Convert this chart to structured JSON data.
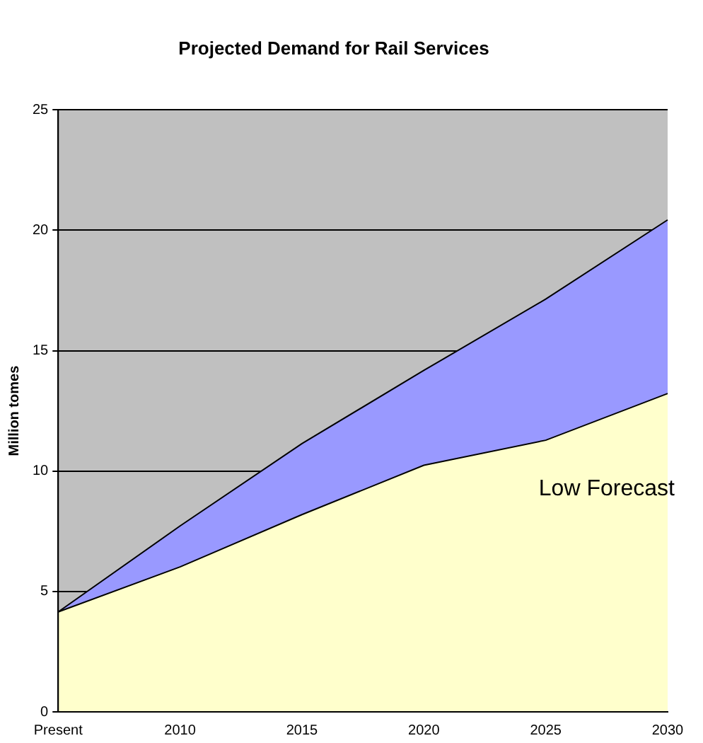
{
  "chart_data": {
    "type": "area",
    "title": "Projected Demand for Rail Services",
    "ylabel": "Million tomes",
    "categories": [
      "Present",
      "2010",
      "2015",
      "2020",
      "2025",
      "2030"
    ],
    "stacked": true,
    "series": [
      {
        "name": "Low Forecast",
        "color": "#ffffcc",
        "values": [
          4.15,
          6.02,
          8.19,
          10.24,
          11.28,
          13.22
        ]
      },
      {
        "color": "#9999ff",
        "values": [
          0,
          1.7,
          2.95,
          3.94,
          5.86,
          7.21
        ]
      }
    ],
    "ylim": [
      0,
      25
    ],
    "yticks": [
      0,
      5,
      10,
      15,
      20,
      25
    ],
    "grid": "y",
    "legend": false
  }
}
